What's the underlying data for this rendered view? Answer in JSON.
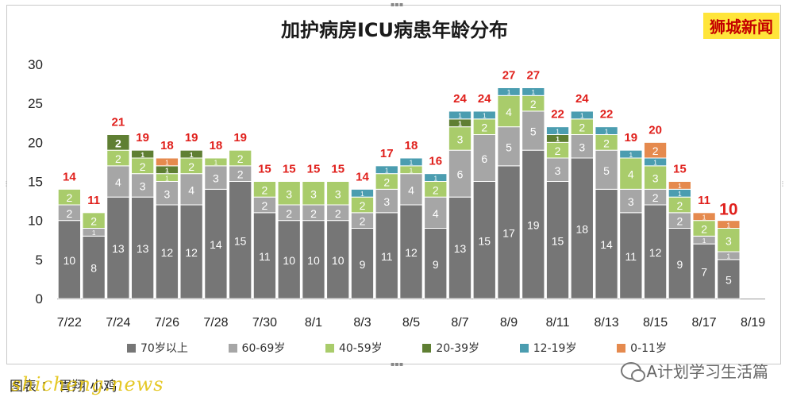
{
  "header": {
    "title": "加护病房ICU病患年龄分布",
    "badge": "狮城新闻"
  },
  "footer": {
    "caption": "图表 ： 胃翔 小鸡",
    "watermark": "shicheng.news",
    "wechat_label": "A计划学习生活篇"
  },
  "colors": {
    "age_70_plus": "#767676",
    "age_60_69": "#a6a6a6",
    "age_40_59": "#a9cc6b",
    "age_20_39": "#5f7f33",
    "age_12_19": "#4b9db0",
    "age_0_11": "#e58a4e",
    "total_label": "#e0201c"
  },
  "chart_data": {
    "type": "bar",
    "stacked": true,
    "title": "加护病房ICU病患年龄分布",
    "xlabel": "",
    "ylabel": "",
    "ylim": [
      0,
      30
    ],
    "yticks": [
      0,
      5,
      10,
      15,
      20,
      25,
      30
    ],
    "grid": false,
    "legend_position": "bottom",
    "categories": [
      "7/22",
      "7/23",
      "7/24",
      "7/25",
      "7/26",
      "7/27",
      "7/28",
      "7/29",
      "7/30",
      "7/31",
      "8/1",
      "8/2",
      "8/3",
      "8/4",
      "8/5",
      "8/6",
      "8/7",
      "8/8",
      "8/9",
      "8/10",
      "8/11",
      "8/12",
      "8/13",
      "8/14",
      "8/15",
      "8/16",
      "8/17",
      "8/18",
      "8/19"
    ],
    "xtick_labels": [
      "7/22",
      "7/24",
      "7/26",
      "7/28",
      "7/30",
      "8/1",
      "8/3",
      "8/5",
      "8/7",
      "8/9",
      "8/11",
      "8/13",
      "8/15",
      "8/17",
      "8/19"
    ],
    "series": [
      {
        "name": "70岁以上",
        "values": [
          10,
          8,
          13,
          13,
          12,
          12,
          14,
          15,
          11,
          10,
          10,
          10,
          9,
          11,
          12,
          9,
          13,
          15,
          17,
          19,
          15,
          18,
          14,
          11,
          12,
          9,
          7,
          5,
          0
        ]
      },
      {
        "name": "60-69岁",
        "values": [
          2,
          1,
          4,
          3,
          3,
          4,
          3,
          2,
          2,
          2,
          2,
          2,
          2,
          3,
          4,
          4,
          6,
          6,
          5,
          5,
          3,
          3,
          5,
          3,
          2,
          2,
          1,
          1,
          0
        ]
      },
      {
        "name": "40-59岁",
        "values": [
          2,
          2,
          2,
          2,
          1,
          2,
          1,
          2,
          2,
          3,
          3,
          3,
          2,
          2,
          1,
          2,
          3,
          2,
          4,
          2,
          2,
          2,
          2,
          4,
          3,
          2,
          2,
          3,
          0
        ]
      },
      {
        "name": "20-39岁",
        "values": [
          0,
          0,
          2,
          1,
          1,
          1,
          0,
          0,
          0,
          0,
          0,
          0,
          0,
          0,
          0,
          0,
          1,
          0,
          0,
          0,
          1,
          0,
          0,
          0,
          0,
          0,
          0,
          0,
          0
        ]
      },
      {
        "name": "12-19岁",
        "values": [
          0,
          0,
          0,
          0,
          0,
          0,
          0,
          0,
          0,
          0,
          0,
          0,
          1,
          1,
          1,
          1,
          1,
          1,
          1,
          1,
          1,
          1,
          1,
          1,
          1,
          1,
          0,
          0,
          0
        ]
      },
      {
        "name": "0-11岁",
        "values": [
          0,
          0,
          0,
          0,
          1,
          0,
          0,
          0,
          0,
          0,
          0,
          0,
          0,
          0,
          0,
          0,
          0,
          0,
          0,
          0,
          0,
          0,
          0,
          0,
          2,
          1,
          1,
          1,
          0
        ]
      }
    ],
    "totals": [
      14,
      11,
      21,
      19,
      18,
      19,
      18,
      19,
      15,
      15,
      15,
      15,
      14,
      17,
      18,
      16,
      24,
      24,
      27,
      27,
      22,
      24,
      22,
      19,
      20,
      15,
      11,
      10,
      null
    ]
  }
}
